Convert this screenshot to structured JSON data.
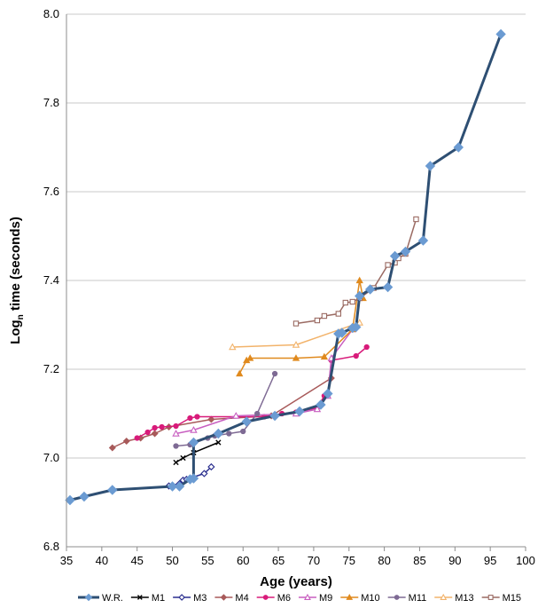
{
  "chart_data": {
    "type": "line",
    "xlabel": "Age (years)",
    "ylabel": "Log",
    "ylabel_sub": "n",
    "ylabel_rest": " time (seconds)",
    "xlim": [
      35,
      100
    ],
    "ylim": [
      6.8,
      8.0
    ],
    "x_ticks": [
      35,
      40,
      45,
      50,
      55,
      60,
      65,
      70,
      75,
      80,
      85,
      90,
      95,
      100
    ],
    "y_ticks": [
      6.8,
      7.0,
      7.2,
      7.4,
      7.6,
      7.8,
      8.0
    ],
    "y_tick_labels": [
      "6.8",
      "7.0",
      "7.2",
      "7.4",
      "7.6",
      "7.8",
      "8.0"
    ],
    "grid": "horizontal",
    "legend_position": "bottom",
    "series": [
      {
        "name": "W.R.",
        "color": "#2e4f73",
        "marker": "diamond-fill",
        "mcolor": "#6b9bd2",
        "width": 3,
        "points": [
          [
            35.5,
            6.905
          ],
          [
            37.5,
            6.913
          ],
          [
            41.5,
            6.928
          ],
          [
            50,
            6.936
          ],
          [
            51,
            6.936
          ],
          [
            52.5,
            6.952
          ],
          [
            53,
            6.954
          ],
          [
            53,
            7.035
          ],
          [
            56.5,
            7.055
          ],
          [
            60.5,
            7.082
          ],
          [
            64.5,
            7.095
          ],
          [
            68,
            7.105
          ],
          [
            71,
            7.12
          ],
          [
            72,
            7.145
          ],
          [
            73.5,
            7.28
          ],
          [
            74,
            7.282
          ],
          [
            75.5,
            7.293
          ],
          [
            76,
            7.295
          ],
          [
            76.5,
            7.365
          ],
          [
            78,
            7.38
          ],
          [
            80.5,
            7.385
          ],
          [
            81.5,
            7.455
          ],
          [
            83,
            7.465
          ],
          [
            85.5,
            7.49
          ],
          [
            86.5,
            7.658
          ],
          [
            90.5,
            7.7
          ],
          [
            96.5,
            7.955
          ]
        ]
      },
      {
        "name": "M1",
        "color": "#000000",
        "marker": "x",
        "mcolor": "#000000",
        "width": 1.5,
        "points": [
          [
            50.5,
            6.99
          ],
          [
            51.5,
            7.0
          ],
          [
            53,
            7.012
          ],
          [
            56.5,
            7.035
          ]
        ]
      },
      {
        "name": "M3",
        "color": "#2b2f8f",
        "marker": "diamond-open",
        "mcolor": "#2b2f8f",
        "width": 1.5,
        "points": [
          [
            49.5,
            6.937
          ],
          [
            51,
            6.942
          ],
          [
            51.5,
            6.95
          ],
          [
            52,
            6.952
          ],
          [
            54.5,
            6.965
          ],
          [
            55.5,
            6.98
          ]
        ]
      },
      {
        "name": "M4",
        "color": "#a85a5a",
        "marker": "diamond-fill",
        "mcolor": "#a85a5a",
        "width": 1.5,
        "points": [
          [
            41.5,
            7.023
          ],
          [
            43.5,
            7.038
          ],
          [
            45.5,
            7.045
          ],
          [
            47.5,
            7.055
          ],
          [
            49.5,
            7.07
          ],
          [
            55.5,
            7.087
          ],
          [
            64,
            7.095
          ],
          [
            72.5,
            7.18
          ]
        ]
      },
      {
        "name": "M6",
        "color": "#d81b7a",
        "marker": "circle-fill",
        "mcolor": "#d81b7a",
        "width": 1.5,
        "points": [
          [
            45,
            7.045
          ],
          [
            46.5,
            7.058
          ],
          [
            47.5,
            7.068
          ],
          [
            48.5,
            7.07
          ],
          [
            50.5,
            7.072
          ],
          [
            52.5,
            7.09
          ],
          [
            53.5,
            7.093
          ],
          [
            63,
            7.093
          ],
          [
            65.5,
            7.1
          ],
          [
            67.5,
            7.103
          ],
          [
            70.5,
            7.113
          ],
          [
            71.5,
            7.14
          ],
          [
            72,
            7.14
          ],
          [
            72.5,
            7.22
          ],
          [
            76,
            7.23
          ],
          [
            77.5,
            7.25
          ]
        ]
      },
      {
        "name": "M9",
        "color": "#c85fc0",
        "marker": "triangle-open",
        "mcolor": "#c85fc0",
        "width": 1.5,
        "points": [
          [
            50.5,
            7.055
          ],
          [
            53,
            7.063
          ],
          [
            59,
            7.095
          ],
          [
            67.5,
            7.1
          ],
          [
            70.5,
            7.11
          ],
          [
            72,
            7.14
          ],
          [
            72.5,
            7.225
          ],
          [
            75.5,
            7.29
          ]
        ]
      },
      {
        "name": "M10",
        "color": "#e08a1e",
        "marker": "triangle-fill",
        "mcolor": "#e08a1e",
        "width": 1.5,
        "points": [
          [
            59.5,
            7.19
          ],
          [
            60.5,
            7.22
          ],
          [
            61,
            7.225
          ],
          [
            67.5,
            7.225
          ],
          [
            71.5,
            7.228
          ],
          [
            75.5,
            7.29
          ],
          [
            76.5,
            7.4
          ],
          [
            77,
            7.36
          ]
        ]
      },
      {
        "name": "M11",
        "color": "#7e6a94",
        "marker": "circle-fill",
        "mcolor": "#7e6a94",
        "width": 1.5,
        "points": [
          [
            50.5,
            7.027
          ],
          [
            52.5,
            7.03
          ],
          [
            55,
            7.045
          ],
          [
            56,
            7.05
          ],
          [
            58,
            7.055
          ],
          [
            60,
            7.06
          ],
          [
            62,
            7.1
          ],
          [
            64.5,
            7.19
          ]
        ]
      },
      {
        "name": "M13",
        "color": "#f2b36b",
        "marker": "triangle-open",
        "mcolor": "#f2b36b",
        "width": 1.5,
        "points": [
          [
            58.5,
            7.25
          ],
          [
            67.5,
            7.255
          ],
          [
            76.5,
            7.305
          ]
        ]
      },
      {
        "name": "M15",
        "color": "#9a6a62",
        "marker": "square-open",
        "mcolor": "#9a6a62",
        "width": 1.5,
        "points": [
          [
            67.5,
            7.303
          ],
          [
            70.5,
            7.31
          ],
          [
            71.5,
            7.32
          ],
          [
            73.5,
            7.325
          ],
          [
            74.5,
            7.35
          ],
          [
            75.5,
            7.352
          ],
          [
            76.5,
            7.36
          ],
          [
            78.5,
            7.383
          ],
          [
            80.5,
            7.435
          ],
          [
            81.5,
            7.44
          ],
          [
            82,
            7.45
          ],
          [
            83,
            7.46
          ],
          [
            84.5,
            7.538
          ]
        ]
      }
    ]
  }
}
